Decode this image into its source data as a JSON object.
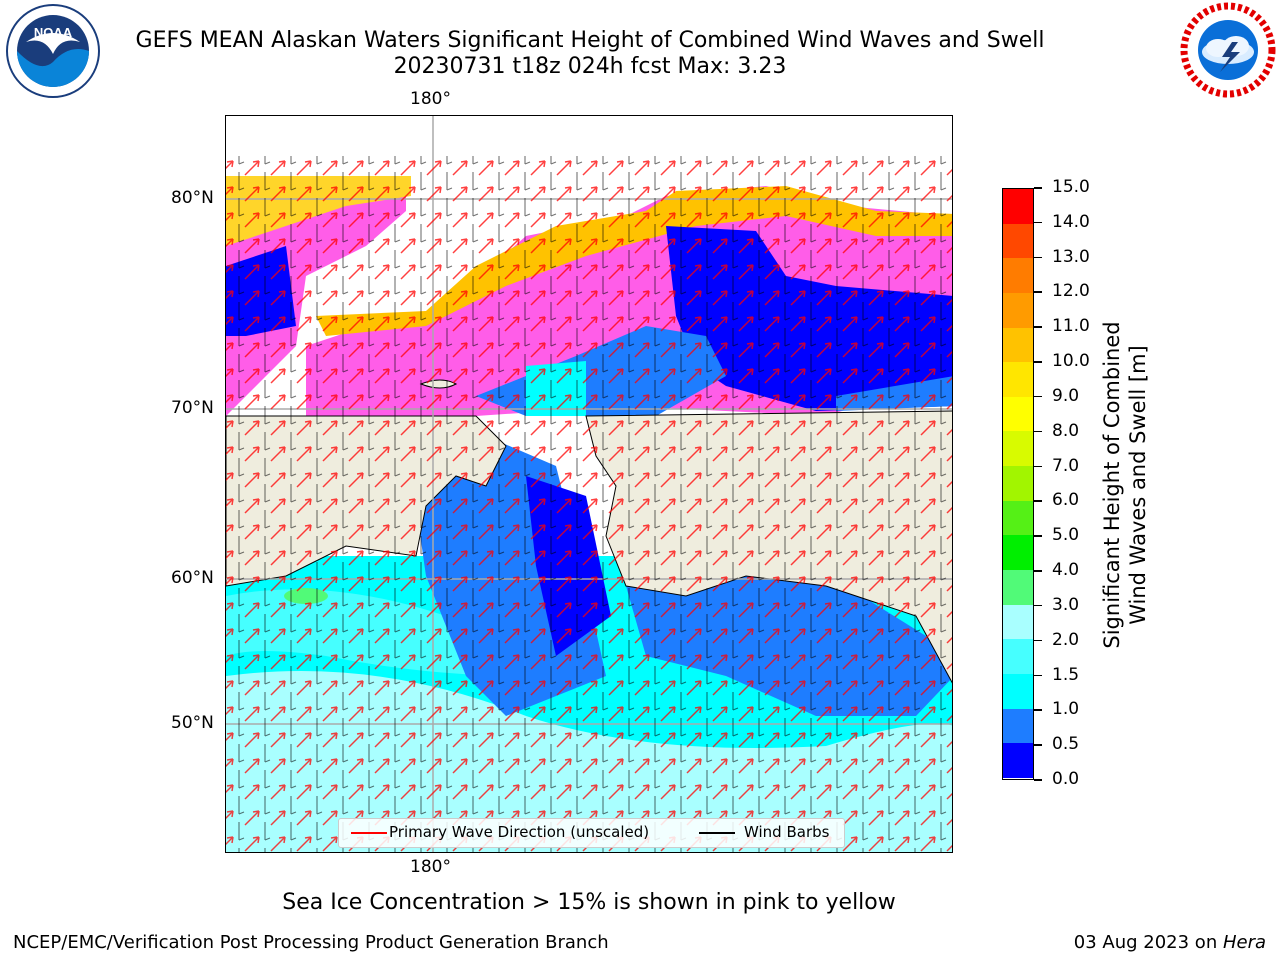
{
  "header": {
    "title_line1": "GEFS MEAN Alaskan Waters Significant Height of Combined Wind Waves and Swell",
    "title_line2": "20230731 t18z 024h fcst   Max: 3.23"
  },
  "logos": {
    "left": "noaa-logo",
    "right": "nws-logo",
    "left_text": "NOAA"
  },
  "map": {
    "lon_label_top": "180°",
    "lon_label_bottom": "180°",
    "lat_labels": [
      "80°N",
      "70°N",
      "60°N",
      "50°N"
    ],
    "land_color": "#efedde",
    "legend": {
      "wave_label": "Primary Wave Direction (unscaled)",
      "wave_color": "#ff0000",
      "barb_label": "Wind Barbs",
      "barb_color": "#000000"
    }
  },
  "colorbar": {
    "title_line1": "Significant Height of Combined",
    "title_line2": "Wind Waves and Swell [m]",
    "levels": [
      "0.0",
      "0.5",
      "1.0",
      "1.5",
      "2.0",
      "3.0",
      "4.0",
      "5.0",
      "6.0",
      "7.0",
      "8.0",
      "9.0",
      "10.0",
      "11.0",
      "12.0",
      "13.0",
      "14.0",
      "15.0"
    ],
    "colors": [
      "#0000ff",
      "#1e7dff",
      "#00ffff",
      "#46ffff",
      "#a9ffff",
      "#51fa78",
      "#00ef00",
      "#55f016",
      "#a2f500",
      "#d8fb00",
      "#ffff00",
      "#ffe600",
      "#ffc200",
      "#ff9b00",
      "#ff7c00",
      "#ff4800",
      "#ff0000"
    ]
  },
  "caption": "Sea Ice Concentration > 15% is shown in pink to yellow",
  "footer": {
    "left": "NCEP/EMC/Verification Post Processing Product Generation Branch",
    "right_date": "03 Aug 2023 on ",
    "right_host": "Hera"
  }
}
